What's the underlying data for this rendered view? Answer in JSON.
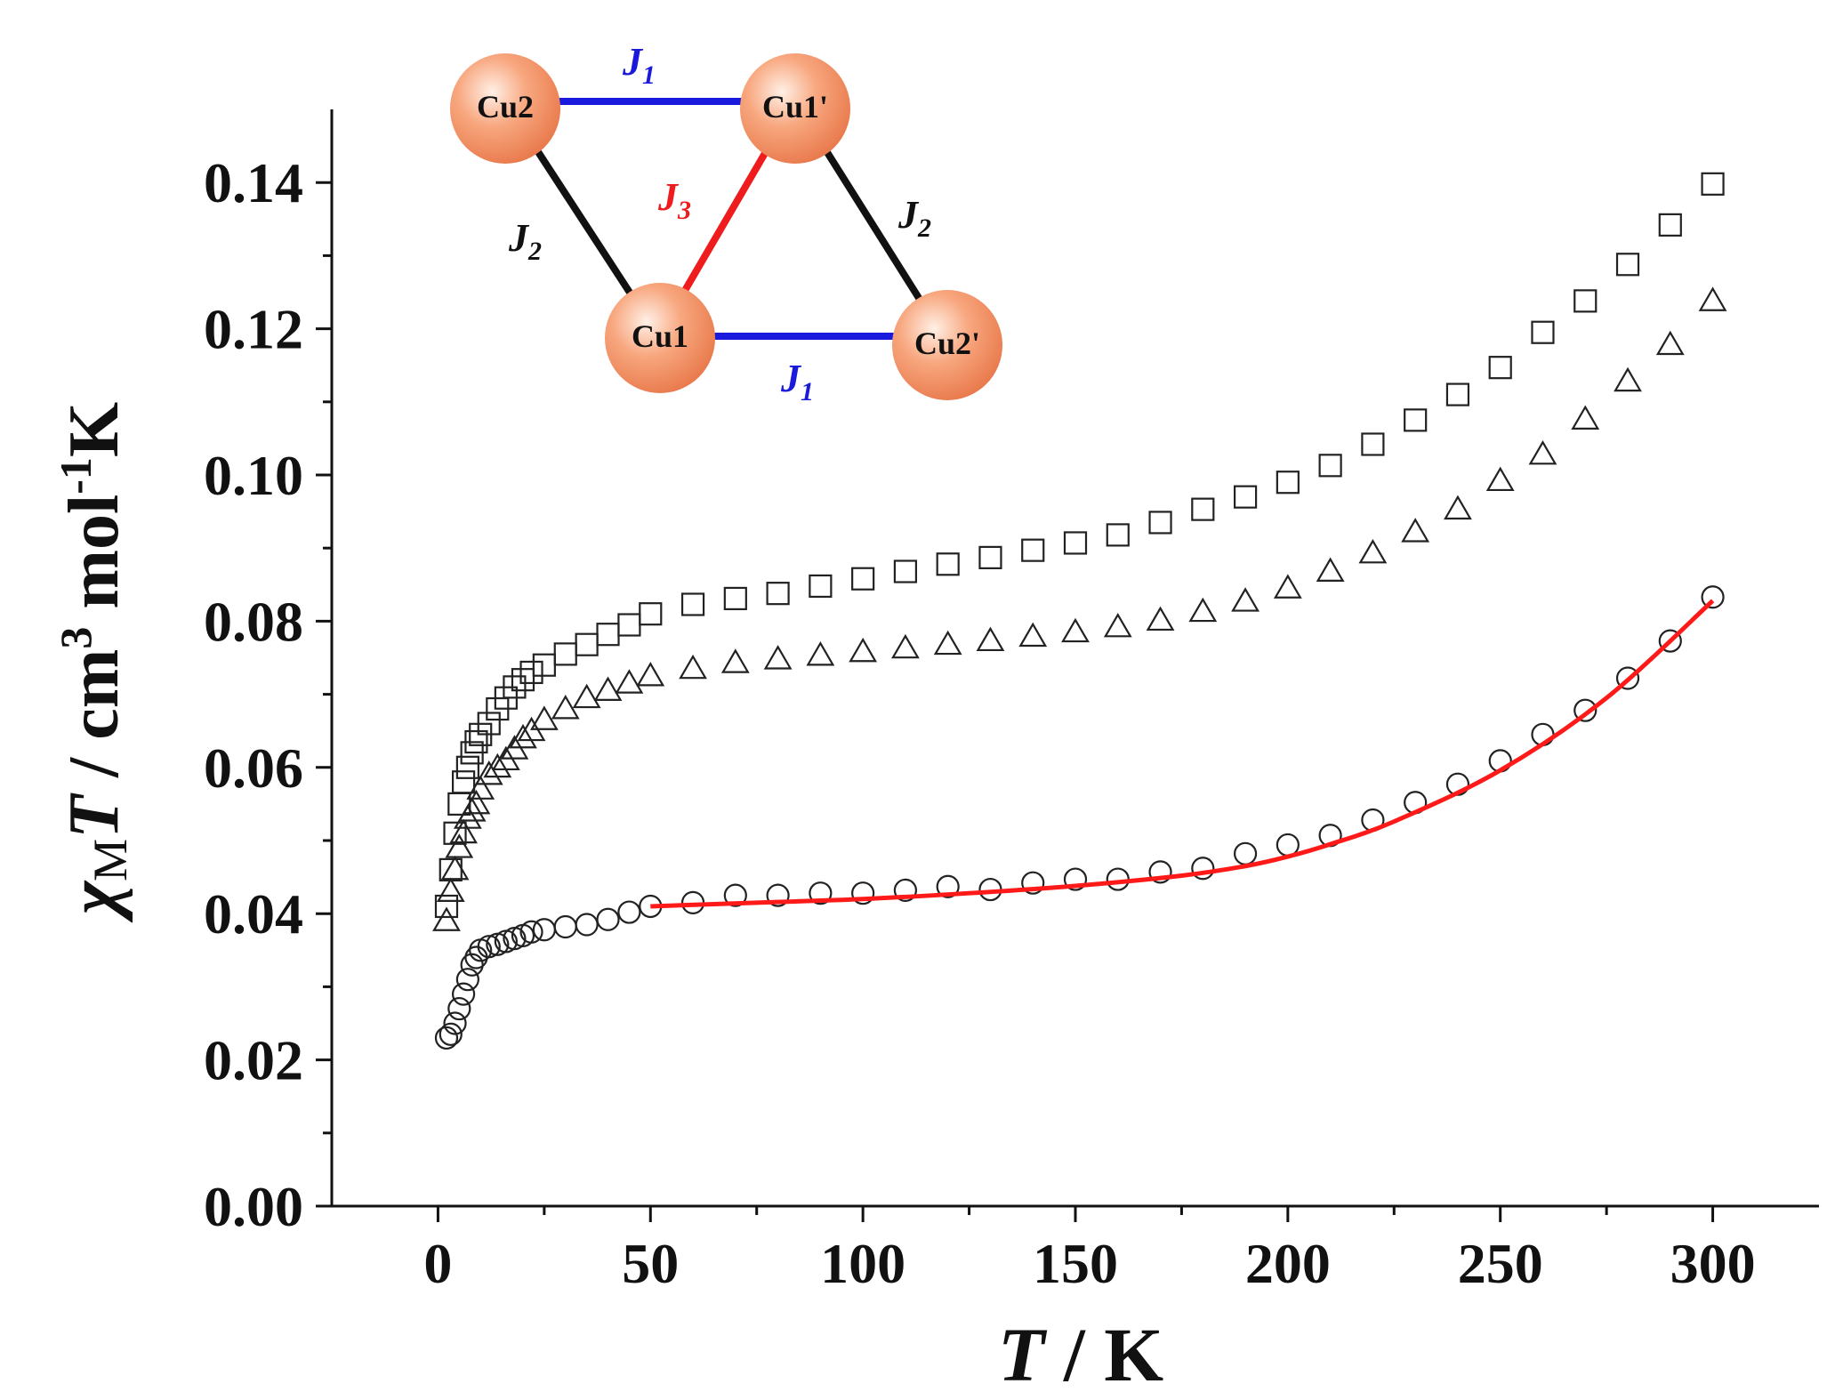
{
  "chart_data": {
    "type": "scatter",
    "title": "",
    "xlabel": {
      "var": "T",
      "unit": " / K"
    },
    "ylabel": {
      "chi": "χ",
      "sub": "M",
      "var": "T",
      "unit1": " / cm",
      "sup1": "3",
      "unit2": " mol",
      "sup2": "-1",
      "unit3": "K"
    },
    "xlim": [
      -25,
      325
    ],
    "ylim": [
      0,
      0.15
    ],
    "xticks": [
      0,
      50,
      100,
      150,
      200,
      250,
      300
    ],
    "xtick_labels": [
      "0",
      "50",
      "100",
      "150",
      "200",
      "250",
      "300"
    ],
    "yticks": [
      0,
      0.02,
      0.04,
      0.06,
      0.08,
      0.1,
      0.12,
      0.14
    ],
    "ytick_labels": [
      "0.00",
      "0.02",
      "0.04",
      "0.06",
      "0.08",
      "0.10",
      "0.12",
      "0.14"
    ],
    "grid": false,
    "series": [
      {
        "name": "squares",
        "marker": "square",
        "color": "#222222",
        "x": [
          2,
          3,
          4,
          5,
          6,
          7,
          8,
          9,
          10,
          12,
          14,
          16,
          18,
          20,
          22,
          25,
          30,
          35,
          40,
          45,
          50,
          60,
          70,
          80,
          90,
          100,
          110,
          120,
          130,
          140,
          150,
          160,
          170,
          180,
          190,
          200,
          210,
          220,
          230,
          240,
          250,
          260,
          270,
          280,
          290,
          300
        ],
        "y": [
          0.041,
          0.046,
          0.051,
          0.055,
          0.058,
          0.06,
          0.062,
          0.0635,
          0.0645,
          0.066,
          0.068,
          0.0695,
          0.071,
          0.072,
          0.073,
          0.074,
          0.0755,
          0.0768,
          0.0782,
          0.0795,
          0.081,
          0.0823,
          0.0831,
          0.0838,
          0.0848,
          0.0858,
          0.0868,
          0.0878,
          0.0887,
          0.0897,
          0.0907,
          0.0918,
          0.0935,
          0.0953,
          0.097,
          0.099,
          0.1013,
          0.1042,
          0.1075,
          0.111,
          0.1147,
          0.1195,
          0.1238,
          0.1288,
          0.1342,
          0.1398
        ]
      },
      {
        "name": "triangles",
        "marker": "triangle",
        "color": "#222222",
        "x": [
          2,
          3,
          4,
          5,
          6,
          7,
          8,
          9,
          10,
          12,
          14,
          16,
          18,
          20,
          22,
          25,
          30,
          35,
          40,
          45,
          50,
          60,
          70,
          80,
          90,
          100,
          110,
          120,
          130,
          140,
          150,
          160,
          170,
          180,
          190,
          200,
          210,
          220,
          230,
          240,
          250,
          260,
          270,
          280,
          290,
          300
        ],
        "y": [
          0.039,
          0.043,
          0.046,
          0.049,
          0.051,
          0.053,
          0.054,
          0.055,
          0.057,
          0.059,
          0.06,
          0.061,
          0.0625,
          0.064,
          0.065,
          0.0665,
          0.068,
          0.0695,
          0.0705,
          0.0715,
          0.0725,
          0.0735,
          0.0743,
          0.0748,
          0.0753,
          0.0758,
          0.0763,
          0.0768,
          0.0773,
          0.0779,
          0.0785,
          0.0792,
          0.0801,
          0.0813,
          0.0827,
          0.0845,
          0.0868,
          0.0893,
          0.0922,
          0.0953,
          0.0992,
          0.1028,
          0.1076,
          0.1128,
          0.1178,
          0.1238
        ]
      },
      {
        "name": "circles",
        "marker": "circle",
        "color": "#222222",
        "x": [
          2,
          3,
          4,
          5,
          6,
          7,
          8,
          9,
          10,
          12,
          14,
          16,
          18,
          20,
          22,
          25,
          30,
          35,
          40,
          45,
          50,
          60,
          70,
          80,
          90,
          100,
          110,
          120,
          130,
          140,
          150,
          160,
          170,
          180,
          190,
          200,
          210,
          220,
          230,
          240,
          250,
          260,
          270,
          280,
          290,
          300
        ],
        "y": [
          0.023,
          0.0235,
          0.025,
          0.027,
          0.029,
          0.031,
          0.033,
          0.034,
          0.035,
          0.0355,
          0.0358,
          0.0362,
          0.0366,
          0.037,
          0.0375,
          0.0378,
          0.0382,
          0.0385,
          0.0392,
          0.0402,
          0.041,
          0.0415,
          0.0425,
          0.0425,
          0.0428,
          0.0428,
          0.0432,
          0.0437,
          0.0433,
          0.0442,
          0.0447,
          0.0447,
          0.0457,
          0.0462,
          0.0482,
          0.0494,
          0.0507,
          0.0528,
          0.0552,
          0.0577,
          0.0609,
          0.0645,
          0.0678,
          0.0722,
          0.0773,
          0.0833
        ]
      }
    ],
    "fit_line": {
      "name": "fit",
      "color": "#ff1a1a",
      "x": [
        50,
        75,
        100,
        125,
        150,
        175,
        190,
        200,
        210,
        225,
        250,
        275,
        300
      ],
      "y": [
        0.041,
        0.0415,
        0.042,
        0.0428,
        0.0438,
        0.0452,
        0.0465,
        0.0478,
        0.0495,
        0.0526,
        0.0596,
        0.0695,
        0.0828
      ]
    },
    "inset": {
      "nodes": [
        {
          "id": "Cu2",
          "label": "Cu2"
        },
        {
          "id": "Cu1p",
          "label": "Cu1'"
        },
        {
          "id": "Cu1",
          "label": "Cu1"
        },
        {
          "id": "Cu2p",
          "label": "Cu2'"
        }
      ],
      "bonds": [
        {
          "from": "Cu2",
          "to": "Cu1p",
          "j": "J",
          "sub": "1",
          "color": "#1a1adc"
        },
        {
          "from": "Cu1",
          "to": "Cu2p",
          "j": "J",
          "sub": "1",
          "color": "#1a1adc"
        },
        {
          "from": "Cu2",
          "to": "Cu1",
          "j": "J",
          "sub": "2",
          "color": "#111111"
        },
        {
          "from": "Cu1p",
          "to": "Cu2p",
          "j": "J",
          "sub": "2",
          "color": "#111111"
        },
        {
          "from": "Cu1p",
          "to": "Cu1",
          "j": "J",
          "sub": "3",
          "color": "#ee1c1c"
        }
      ],
      "node_color": "#f7a37a"
    }
  }
}
